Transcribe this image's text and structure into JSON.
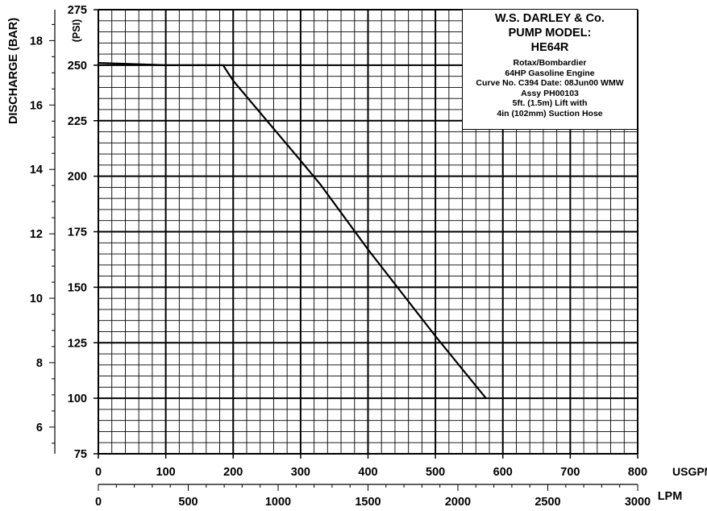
{
  "chart_data": {
    "type": "line",
    "title_lines": [
      "W.S. DARLEY & Co.",
      "PUMP MODEL:",
      "HE64R"
    ],
    "note_lines": [
      "Rotax/Bombardier",
      "64HP Gasoline Engine",
      "Curve No. C394 Date: 08Jun00 WMW",
      "Assy PH00103",
      "5ft. (1.5m) Lift with",
      "4in (102mm) Suction Hose"
    ],
    "ylabel_left": "DISCHARGE (BAR)",
    "ylabel_right": "(PSI)",
    "xlabel_top": "USGPM",
    "xlabel_bottom": "LPM",
    "psi_axis": {
      "ylim": [
        75,
        275
      ],
      "ticks": [
        "75",
        "100",
        "125",
        "150",
        "175",
        "200",
        "225",
        "250",
        "275"
      ]
    },
    "bar_axis": {
      "ticks": [
        "6",
        "8",
        "10",
        "12",
        "14",
        "16",
        "18"
      ]
    },
    "usgpm_axis": {
      "xlim": [
        0,
        800
      ],
      "ticks": [
        "0",
        "100",
        "200",
        "300",
        "400",
        "500",
        "600",
        "700",
        "800"
      ]
    },
    "lpm_axis": {
      "xlim": [
        0,
        3000
      ],
      "ticks": [
        "0",
        "500",
        "1000",
        "1500",
        "2000",
        "2500",
        "3000"
      ]
    },
    "grid": true,
    "series": [
      {
        "x": [
          0,
          100,
          185,
          200,
          300,
          330,
          400,
          500,
          575
        ],
        "y": [
          251,
          250,
          250,
          243,
          207,
          196,
          167,
          128,
          100
        ]
      }
    ]
  }
}
